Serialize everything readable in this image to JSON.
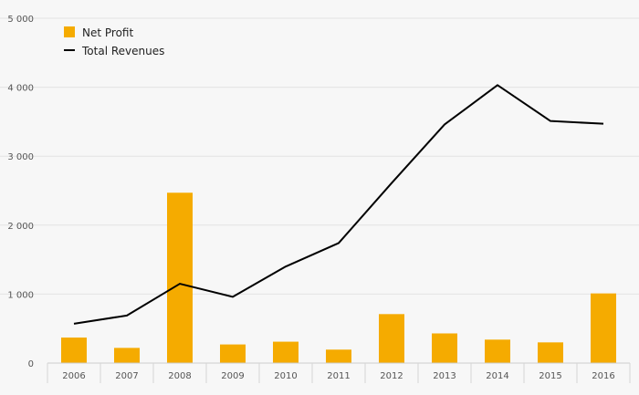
{
  "chart_data": {
    "type": "bar",
    "categories": [
      "2006",
      "2007",
      "2008",
      "2009",
      "2010",
      "2011",
      "2012",
      "2013",
      "2014",
      "2015",
      "2016"
    ],
    "series": [
      {
        "name": "Net Profit",
        "type": "bar",
        "color": "#f5ab00",
        "values": [
          370,
          220,
          2470,
          270,
          310,
          195,
          710,
          430,
          340,
          300,
          1010
        ]
      },
      {
        "name": "Total Revenues",
        "type": "line",
        "color": "#000000",
        "values": [
          570,
          690,
          1150,
          960,
          1400,
          1740,
          2610,
          3460,
          4030,
          3510,
          3470
        ]
      }
    ],
    "ylim": [
      0,
      5000
    ],
    "yticks": [
      0,
      1000,
      2000,
      3000,
      4000,
      5000
    ],
    "ytick_labels": [
      "0",
      "1 000",
      "2 000",
      "3 000",
      "4 000",
      "5 000"
    ],
    "title": "",
    "xlabel": "",
    "ylabel": "",
    "grid": true,
    "legend_position": "top-left"
  }
}
